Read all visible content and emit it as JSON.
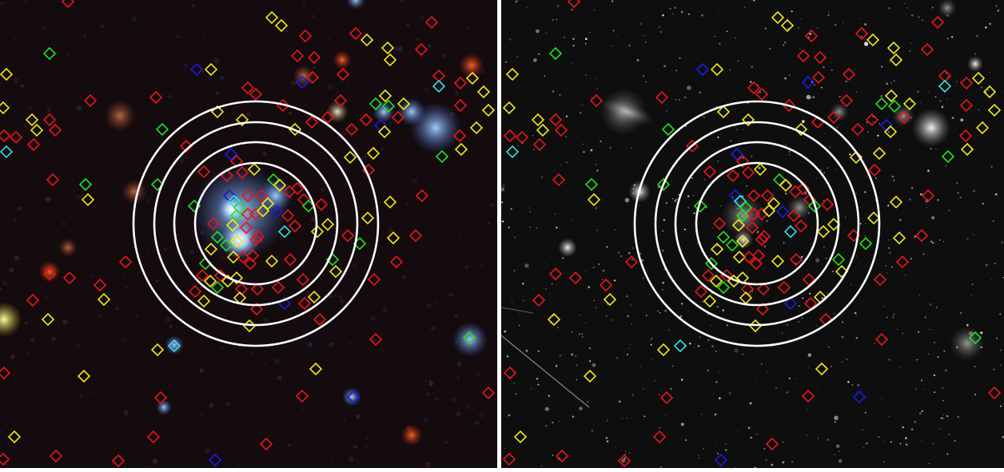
{
  "figure": {
    "panels": [
      {
        "id": "left",
        "description": "color composite",
        "background": "#120a0c"
      },
      {
        "id": "right",
        "description": "grayscale",
        "background": "#0c0c0c"
      }
    ],
    "ring_color": "#ffffff",
    "ring_count": 4,
    "marker_colors": {
      "red": "#e8141c",
      "yellow": "#f0e81a",
      "green": "#22e022",
      "blue": "#1a1ae6",
      "cyan": "#33dde8"
    }
  }
}
